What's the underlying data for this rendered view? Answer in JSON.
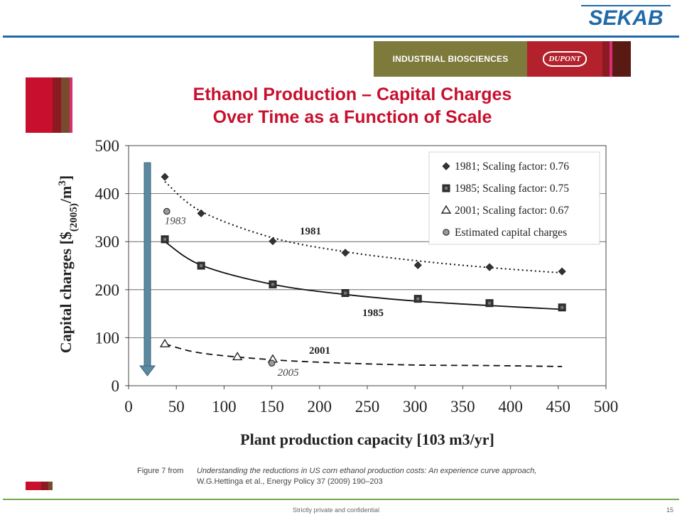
{
  "logo_text": "SEKAB",
  "banner": {
    "left_text": "INDUSTRIAL BIOSCIENCES",
    "brand_text": "DUPONT"
  },
  "title": {
    "line1": "Ethanol Production – Capital Charges",
    "line2": "Over Time as a Function of Scale"
  },
  "colors": {
    "title": "#c8102e",
    "topline": "#1f6aa8",
    "bottomline": "#6aa84f",
    "arrow": "#5b8aa0",
    "banner_olive": "#7d7a3c",
    "banner_red": "#b3222c"
  },
  "chart_data": {
    "type": "scatter",
    "xlabel": "Plant production capacity [103 m3/yr]",
    "ylabel_main": "Capital charges [$",
    "ylabel_sub": "(2005)",
    "ylabel_end": "/m",
    "ylabel_sup": "3",
    "ylabel_close": "]",
    "xlim": [
      0,
      500
    ],
    "ylim": [
      0,
      500
    ],
    "xticks": [
      0,
      50,
      100,
      150,
      200,
      250,
      300,
      350,
      400,
      450,
      500
    ],
    "yticks": [
      0,
      100,
      200,
      300,
      400,
      500
    ],
    "grid": true,
    "legend_position": "top-right",
    "series": [
      {
        "name": "1981; Scaling factor: 0.76",
        "marker": "diamond",
        "line": "dotted",
        "curve_label": "1981",
        "x": [
          38,
          76,
          151,
          227,
          303,
          378,
          454
        ],
        "y": [
          435,
          359,
          301,
          277,
          251,
          247,
          238
        ],
        "curve_x": [
          38,
          76,
          151,
          227,
          303,
          378,
          454
        ],
        "curve_y": [
          425,
          363,
          308,
          279,
          260,
          246,
          235
        ]
      },
      {
        "name": "1985; Scaling factor: 0.75",
        "marker": "square",
        "line": "solid",
        "curve_label": "1985",
        "x": [
          38,
          76,
          151,
          227,
          303,
          378,
          454
        ],
        "y": [
          305,
          250,
          211,
          193,
          181,
          172,
          163
        ],
        "curve_x": [
          38,
          76,
          151,
          227,
          303,
          378,
          454
        ],
        "curve_y": [
          300,
          251,
          211,
          190,
          176,
          167,
          159
        ]
      },
      {
        "name": "2001; Scaling factor: 0.67",
        "marker": "triangle",
        "line": "dashed",
        "curve_label": "2001",
        "x": [
          38,
          114,
          151
        ],
        "y": [
          87,
          60,
          55
        ],
        "curve_x": [
          38,
          76,
          151,
          227,
          303,
          378,
          454
        ],
        "curve_y": [
          87,
          68,
          54,
          47,
          43,
          42,
          40
        ]
      },
      {
        "name": "Estimated capital charges",
        "marker": "circle",
        "line": "none",
        "x": [
          40,
          150
        ],
        "y": [
          363,
          47
        ],
        "point_labels": [
          "1983",
          "2005"
        ]
      }
    ]
  },
  "caption": {
    "prefix": "Figure 7 from",
    "title": "Understanding the reductions in US corn ethanol production costs: An experience curve approach,",
    "citation": "W.G.Hettinga et al., Energy Policy 37 (2009) 190–203"
  },
  "footer": {
    "confidential": "Strictly private and confidential",
    "page": "15"
  }
}
